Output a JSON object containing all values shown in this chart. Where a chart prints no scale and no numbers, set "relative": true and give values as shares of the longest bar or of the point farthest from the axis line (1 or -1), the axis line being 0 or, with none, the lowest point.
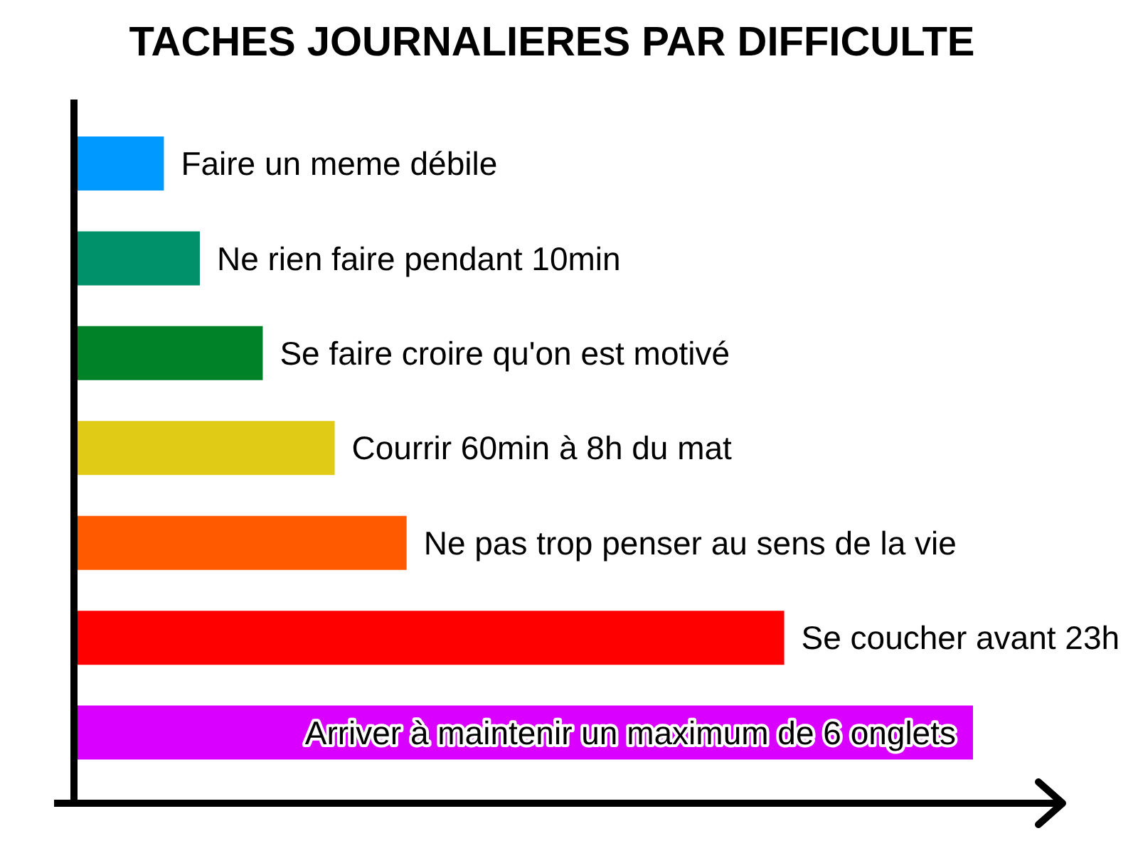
{
  "chart_data": {
    "type": "bar",
    "orientation": "horizontal",
    "relative": true,
    "title": "TACHES JOURNALIERES PAR DIFFICULTE",
    "categories": [
      "Faire un meme débile",
      "Ne rien faire pendant 10min",
      "Se faire croire qu'on est motivé",
      "Courrir 60min à 8h du mat",
      "Ne pas trop penser au sens de la vie",
      "Se coucher avant 23h",
      "Arriver à maintenir un maximum de 6 onglets"
    ],
    "values": [
      0.1,
      0.14,
      0.21,
      0.29,
      0.37,
      0.79,
      1
    ],
    "colors": [
      "#0099ff",
      "#00906a",
      "#008228",
      "#e0cb17",
      "#ff5a00",
      "#ff0000",
      "#d900ff"
    ]
  }
}
